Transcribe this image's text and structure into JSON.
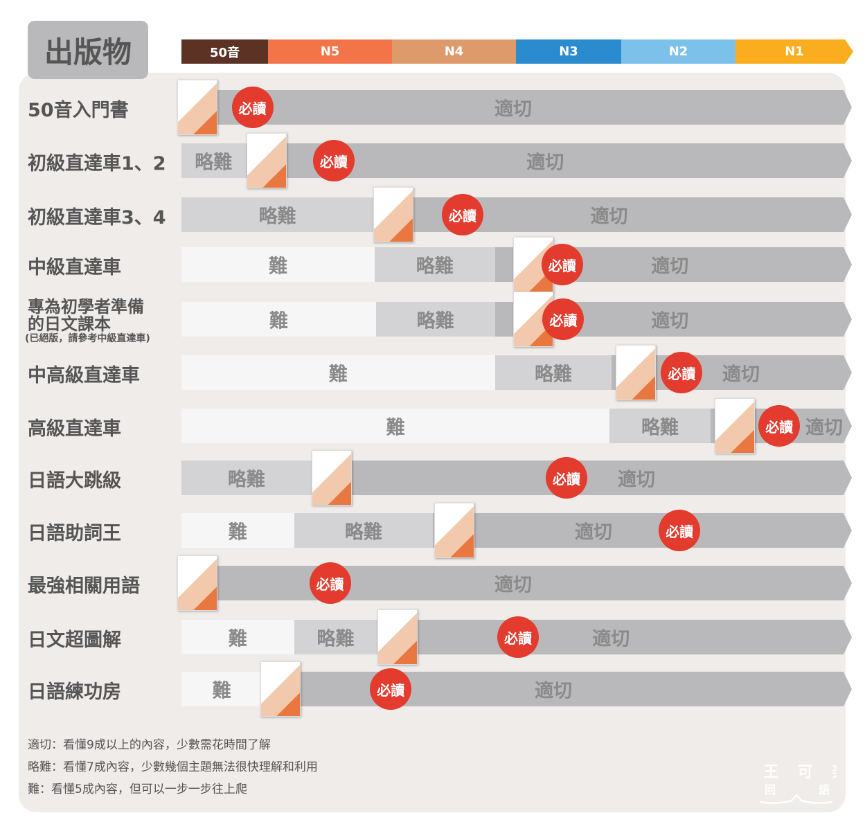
{
  "header": {
    "title": "出版物"
  },
  "levels": [
    {
      "label": "50音",
      "color": "#5b3224"
    },
    {
      "label": "N5",
      "color": "#f4744a"
    },
    {
      "label": "N4",
      "color": "#df9a6c"
    },
    {
      "label": "N3",
      "color": "#2a8ccf"
    },
    {
      "label": "N2",
      "color": "#7bc1ea"
    },
    {
      "label": "N1",
      "color": "#fbad20"
    }
  ],
  "difficulty_colors": {
    "適切": "#b9b9bb",
    "略難": "#d3d3d5",
    "難": "#f6f6f6"
  },
  "must_read_label": "必讀",
  "rows": [
    {
      "title": "50音入門書",
      "segments": [
        {
          "label": "適切",
          "from": 0,
          "to": 6
        }
      ],
      "must_read_at": 0.82,
      "book_at": -0.05
    },
    {
      "title": "初級直達車1、2",
      "segments": [
        {
          "label": "略難",
          "from": 0,
          "to": 0.74
        },
        {
          "label": "適切",
          "from": 0.74,
          "to": 6
        }
      ],
      "must_read_at": 1.53,
      "book_at": 0.75
    },
    {
      "title": "初級直達車3、4",
      "segments": [
        {
          "label": "略難",
          "from": 0,
          "to": 1.85
        },
        {
          "label": "適切",
          "from": 1.85,
          "to": 6
        }
      ],
      "must_read_at": 2.57,
      "book_at": 1.85
    },
    {
      "title": "中級直達車",
      "segments": [
        {
          "label": "難",
          "from": 0,
          "to": 1.86
        },
        {
          "label": "略難",
          "from": 1.86,
          "to": 2.83
        },
        {
          "label": "適切",
          "from": 2.83,
          "to": 6
        }
      ],
      "must_read_at": 3.44,
      "book_at": 2.98
    },
    {
      "title": "專為初學者準備",
      "title2": "的日文課本",
      "note": "(已絕版，請參考中級直達車)",
      "segments": [
        {
          "label": "難",
          "from": 0,
          "to": 1.87
        },
        {
          "label": "略難",
          "from": 1.87,
          "to": 2.83
        },
        {
          "label": "適切",
          "from": 2.83,
          "to": 6
        }
      ],
      "must_read_at": 3.45,
      "book_at": 2.98
    },
    {
      "title": "中高級直達車",
      "segments": [
        {
          "label": "難",
          "from": 0,
          "to": 2.83
        },
        {
          "label": "略難",
          "from": 2.83,
          "to": 3.91
        },
        {
          "label": "適切",
          "from": 3.91,
          "to": 6
        }
      ],
      "must_read_at": 4.53,
      "book_at": 3.95
    },
    {
      "title": "高級直達車",
      "segments": [
        {
          "label": "難",
          "from": 0,
          "to": 3.89
        },
        {
          "label": "略難",
          "from": 3.89,
          "to": 4.78
        },
        {
          "label": "適切",
          "from": 4.78,
          "to": 6
        }
      ],
      "must_read_at": 5.4,
      "book_at": 4.82
    },
    {
      "title": "日語大跳級",
      "segments": [
        {
          "label": "略難",
          "from": 0,
          "to": 1.35
        },
        {
          "label": "適切",
          "from": 1.35,
          "to": 6
        }
      ],
      "must_read_at": 3.48,
      "book_at": 1.35
    },
    {
      "title": "日語助詞王",
      "segments": [
        {
          "label": "難",
          "from": 0,
          "to": 1.21
        },
        {
          "label": "略難",
          "from": 1.21,
          "to": 2.33
        },
        {
          "label": "適切",
          "from": 2.33,
          "to": 6
        }
      ],
      "must_read_at": 4.51,
      "book_at": 2.34
    },
    {
      "title": "最強相關用語",
      "segments": [
        {
          "label": "適切",
          "from": 0,
          "to": 6
        }
      ],
      "must_read_at": 1.5,
      "book_at": -0.05
    },
    {
      "title": "日文超圖解",
      "segments": [
        {
          "label": "難",
          "from": 0,
          "to": 1.21
        },
        {
          "label": "略難",
          "from": 1.21,
          "to": 1.88
        },
        {
          "label": "適切",
          "from": 1.88,
          "to": 6
        }
      ],
      "must_read_at": 3.02,
      "book_at": 1.88
    },
    {
      "title": "日語練功房",
      "segments": [
        {
          "label": "難",
          "from": 0,
          "to": 0.93
        },
        {
          "label": "適切",
          "from": 0.93,
          "to": 6
        }
      ],
      "must_read_at": 1.99,
      "book_at": 0.91
    }
  ],
  "legend": [
    "適切：看懂9成以上的內容，少數需花時間了解",
    "略難：看懂7成內容，少數幾個主題無法很快理解和利用",
    "難：看懂5成內容，但可以一步一步往上爬"
  ],
  "logo": "王可楽日語"
}
